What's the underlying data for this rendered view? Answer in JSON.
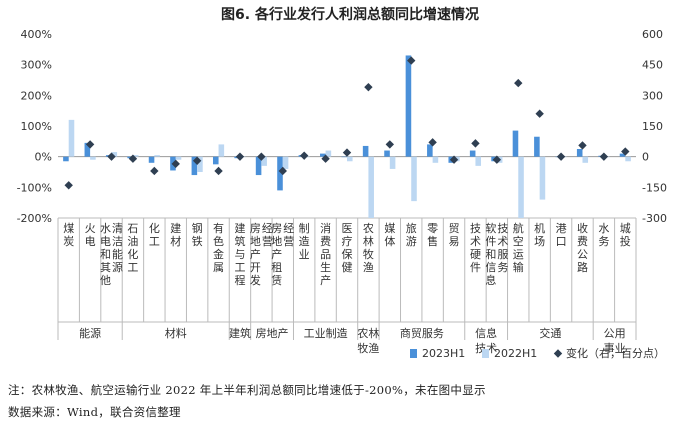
{
  "chart_data": {
    "type": "bar",
    "title": "图6. 各行业发行人利润总额同比增速情况",
    "y_left": {
      "min": -200,
      "max": 400,
      "step": 100,
      "format": "percent"
    },
    "y_right": {
      "min": -300,
      "max": 600,
      "step": 150,
      "format": "number"
    },
    "categories": [
      "煤炭",
      "火电",
      "水电和其他清洁能源",
      "石油化工",
      "化工",
      "建材",
      "钢铁",
      "有色金属",
      "建筑与工程",
      "房地产开发经营",
      "房地产租赁经营",
      "制造业",
      "消费品生产",
      "医疗保健",
      "农林牧渔",
      "媒体",
      "旅游",
      "零售",
      "贸易",
      "技术硬件",
      "软件和信息技术服务",
      "航空运输",
      "机场",
      "港口",
      "收费公路",
      "水务",
      "城投"
    ],
    "groups": [
      {
        "name": "能源",
        "count": 3
      },
      {
        "name": "材料",
        "count": 5
      },
      {
        "name": "建筑",
        "count": 1
      },
      {
        "name": "房地产",
        "count": 2
      },
      {
        "name": "工业制造",
        "count": 3
      },
      {
        "name": "农林牧渔",
        "count": 1
      },
      {
        "name": "商贸服务",
        "count": 4
      },
      {
        "name": "信息技术",
        "count": 2
      },
      {
        "name": "交通",
        "count": 4
      },
      {
        "name": "公用事业",
        "count": 2
      }
    ],
    "series": [
      {
        "name": "2023H1",
        "kind": "bar",
        "axis": "left",
        "color": "#4a90d9",
        "values": [
          -15,
          45,
          5,
          -5,
          -20,
          -45,
          -60,
          -25,
          -5,
          -60,
          -110,
          5,
          10,
          0,
          35,
          20,
          330,
          40,
          -20,
          20,
          -15,
          85,
          65,
          0,
          25,
          3,
          10
        ]
      },
      {
        "name": "2022H1",
        "kind": "bar",
        "axis": "left",
        "color": "#bcd7f2",
        "values": [
          120,
          -10,
          15,
          5,
          5,
          -10,
          -50,
          40,
          0,
          -30,
          -40,
          0,
          20,
          -15,
          -200,
          -40,
          -145,
          -20,
          -15,
          -30,
          -20,
          -200,
          -140,
          0,
          -20,
          0,
          -15
        ]
      },
      {
        "name": "变化（右，百分点）",
        "kind": "marker",
        "axis": "right",
        "color": "#2f3f52",
        "values": [
          -140,
          60,
          0,
          -10,
          -70,
          -35,
          -20,
          -70,
          0,
          0,
          -70,
          5,
          -10,
          20,
          340,
          60,
          470,
          70,
          -15,
          65,
          -15,
          360,
          210,
          0,
          55,
          0,
          25
        ]
      }
    ]
  },
  "notes": {
    "line1": "注：农林牧渔、航空运输行业 2022 年上半年利润总额同比增速低于-200%，未在图中显示",
    "line2": "数据来源：Wind，联合资信整理"
  }
}
